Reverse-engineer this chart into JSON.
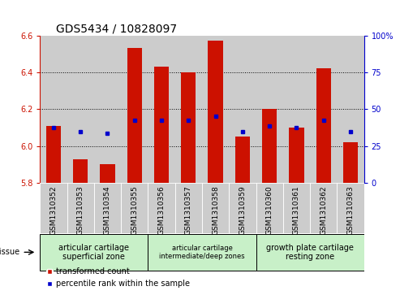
{
  "title": "GDS5434 / 10828097",
  "samples": [
    "GSM1310352",
    "GSM1310353",
    "GSM1310354",
    "GSM1310355",
    "GSM1310356",
    "GSM1310357",
    "GSM1310358",
    "GSM1310359",
    "GSM1310360",
    "GSM1310361",
    "GSM1310362",
    "GSM1310363"
  ],
  "red_values": [
    6.11,
    5.93,
    5.9,
    6.53,
    6.43,
    6.4,
    6.57,
    6.05,
    6.2,
    6.1,
    6.42,
    6.02
  ],
  "blue_values": [
    6.1,
    6.08,
    6.07,
    6.14,
    6.14,
    6.14,
    6.16,
    6.08,
    6.11,
    6.1,
    6.14,
    6.08
  ],
  "ymin": 5.8,
  "ymax": 6.6,
  "y2min": 0,
  "y2max": 100,
  "yticks": [
    5.8,
    6.0,
    6.2,
    6.4,
    6.6
  ],
  "y2ticks": [
    0,
    25,
    50,
    75,
    100
  ],
  "tissue_groups": [
    {
      "label": "articular cartilage\nsuperficial zone",
      "start": 0,
      "end": 4,
      "color": "#c8f0c8",
      "fontsize": 7
    },
    {
      "label": "articular cartilage\nintermediate/deep zones",
      "start": 4,
      "end": 8,
      "color": "#c8f0c8",
      "fontsize": 6
    },
    {
      "label": "growth plate cartilage\nresting zone",
      "start": 8,
      "end": 12,
      "color": "#c8f0c8",
      "fontsize": 7
    }
  ],
  "tissue_label": "tissue",
  "red_color": "#cc1100",
  "blue_color": "#0000cc",
  "bar_width": 0.55,
  "col_bg_color": "#cccccc",
  "plot_bg_color": "#ffffff",
  "title_fontsize": 10,
  "tick_fontsize": 7,
  "legend_fontsize": 7,
  "bar_base": 5.8
}
